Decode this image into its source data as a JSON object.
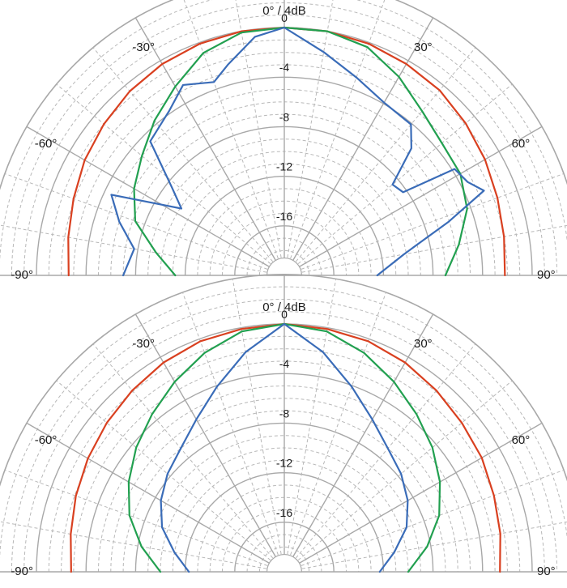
{
  "chart_data": [
    {
      "type": "polar-line",
      "title": "0° / 4dB",
      "angle_labels": [
        "-90°",
        "-60°",
        "-30°",
        "30°",
        "60°",
        "90°"
      ],
      "radial_labels": [
        "0",
        "-4",
        "-8",
        "-12",
        "-16"
      ],
      "r_range_db": [
        -20,
        0
      ],
      "theta_range_deg": [
        -90,
        90
      ],
      "grid": true,
      "series": [
        {
          "color": "#d94020",
          "angles": [
            -90,
            -80,
            -70,
            -60,
            -50,
            -40,
            -30,
            -20,
            -10,
            0,
            10,
            20,
            30,
            40,
            50,
            60,
            70,
            80,
            90
          ],
          "values": [
            -2.6,
            -2.3,
            -1.9,
            -1.4,
            -1.0,
            -0.6,
            -0.3,
            -0.1,
            0,
            0,
            0,
            -0.1,
            -0.3,
            -0.5,
            -0.9,
            -1.3,
            -1.7,
            -2.0,
            -2.2
          ]
        },
        {
          "color": "#22a050",
          "angles": [
            -90,
            -80,
            -70,
            -60,
            -50,
            -40,
            -30,
            -20,
            -10,
            0,
            10,
            20,
            30,
            40,
            50,
            60,
            70,
            80,
            90
          ],
          "values": [
            -11.2,
            -9.5,
            -7.2,
            -6.0,
            -5.0,
            -3.7,
            -2.4,
            -0.9,
            -0.1,
            0,
            0,
            -0.4,
            -1.5,
            -2.7,
            -3.4,
            -3.6,
            -4.3,
            -5.7,
            -7.0
          ]
        },
        {
          "color": "#3a6cb8",
          "angles": [
            -90,
            -80,
            -72,
            -65,
            -57,
            -52,
            -45,
            -35,
            -28,
            -20,
            -15,
            -7,
            0,
            10,
            20,
            30,
            40,
            45,
            50,
            55,
            58,
            63,
            67,
            72,
            80,
            90
          ],
          "values": [
            -7.0,
            -7.7,
            -6.0,
            -4.6,
            -10.1,
            -8.5,
            -4.7,
            -3.8,
            -2.6,
            -3.4,
            -2.4,
            -0.6,
            0,
            -1.7,
            -3.0,
            -3.9,
            -4.1,
            -5.5,
            -8.6,
            -8.3,
            -3.8,
            -3.4,
            -2.5,
            -6.1,
            -10.2,
            -12.5
          ]
        }
      ]
    },
    {
      "type": "polar-line",
      "title": "0° / 4dB",
      "angle_labels": [
        "-90°",
        "-60°",
        "-30°",
        "30°",
        "60°",
        "90°"
      ],
      "radial_labels": [
        "0",
        "-4",
        "-8",
        "-12",
        "-16"
      ],
      "r_range_db": [
        -20,
        0
      ],
      "theta_range_deg": [
        -90,
        90
      ],
      "grid": true,
      "series": [
        {
          "color": "#d94020",
          "angles": [
            -90,
            -80,
            -70,
            -60,
            -50,
            -40,
            -30,
            -20,
            -10,
            0,
            10,
            20,
            30,
            40,
            50,
            60,
            70,
            80,
            90
          ],
          "values": [
            -2.8,
            -2.5,
            -2.1,
            -1.7,
            -1.3,
            -0.9,
            -0.5,
            -0.2,
            -0.1,
            0,
            -0.1,
            -0.2,
            -0.5,
            -0.9,
            -1.3,
            -1.6,
            -2.0,
            -2.3,
            -2.6
          ]
        },
        {
          "color": "#22a050",
          "angles": [
            -90,
            -80,
            -70,
            -60,
            -50,
            -40,
            -30,
            -20,
            -10,
            0,
            10,
            20,
            30,
            40,
            50,
            60,
            70,
            80,
            90
          ],
          "values": [
            -10.0,
            -8.3,
            -6.7,
            -5.5,
            -4.4,
            -3.4,
            -2.3,
            -1.2,
            -0.3,
            0,
            -0.3,
            -1.2,
            -2.3,
            -3.4,
            -4.4,
            -5.5,
            -6.7,
            -8.3,
            -10.0
          ]
        },
        {
          "color": "#3a6cb8",
          "angles": [
            -90,
            -80,
            -70,
            -60,
            -50,
            -40,
            -30,
            -20,
            -10,
            0,
            10,
            20,
            30,
            40,
            50,
            60,
            70,
            80,
            90
          ],
          "values": [
            -12.3,
            -11.0,
            -9.5,
            -8.5,
            -7.7,
            -7.0,
            -5.8,
            -4.1,
            -2.0,
            0,
            -2.0,
            -4.1,
            -5.8,
            -7.0,
            -7.7,
            -8.5,
            -9.5,
            -11.0,
            -12.3
          ]
        }
      ]
    }
  ]
}
